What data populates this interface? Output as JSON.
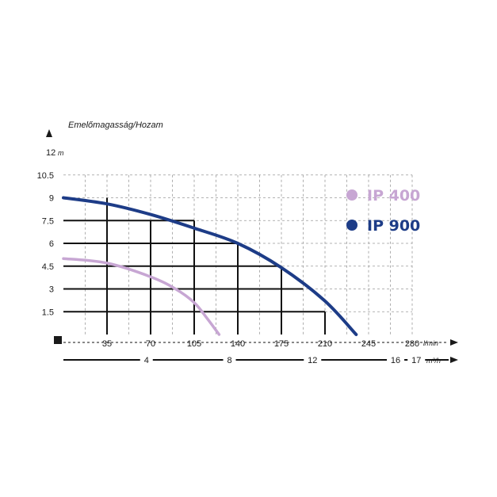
{
  "chart_data": {
    "type": "line",
    "ylabel": "Emelőmagasság/Hozam",
    "y_top_tick": "12",
    "y_unit": "m",
    "y_ticks": [
      "10.5",
      "9",
      "7.5",
      "6",
      "4.5",
      "3",
      "1.5"
    ],
    "ylim": [
      0,
      12
    ],
    "x_unit": "l/min",
    "x_ticks": [
      "35",
      "70",
      "105",
      "140",
      "175",
      "210",
      "245",
      "280"
    ],
    "xlim": [
      0,
      280
    ],
    "x2_unit": "m³/h",
    "x2_ticks": [
      "4",
      "8",
      "12",
      "16",
      "17"
    ],
    "grid": true,
    "legend_position": "right",
    "series": [
      {
        "name": "IP 400",
        "color": "#c7a6d3",
        "x": [
          0,
          35,
          70,
          90,
          105,
          115,
          125
        ],
        "y": [
          5.0,
          4.7,
          3.8,
          3.0,
          2.1,
          1.1,
          0.0
        ]
      },
      {
        "name": "IP 900",
        "color": "#1d3c87",
        "x": [
          0,
          35,
          70,
          105,
          140,
          175,
          210,
          235
        ],
        "y": [
          9.0,
          8.6,
          7.9,
          7.0,
          6.0,
          4.4,
          2.2,
          0.0
        ]
      }
    ]
  }
}
